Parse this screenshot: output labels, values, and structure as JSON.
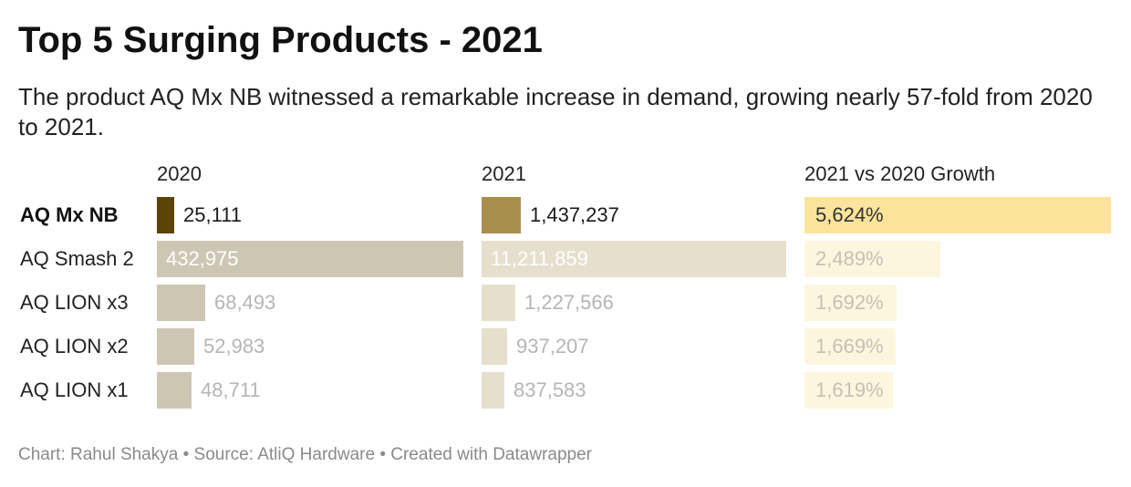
{
  "header": {
    "title": "Top 5 Surging Products - 2021",
    "subtitle": "The product AQ Mx NB witnessed a remarkable increase in demand, growing nearly 57-fold from 2020 to 2021."
  },
  "footer": {
    "text": "Chart: Rahul Shakya • Source: AtliQ Hardware • Created with Datawrapper"
  },
  "chart_data": {
    "type": "bar",
    "orientation": "horizontal",
    "categories": [
      "AQ Mx NB",
      "AQ Smash 2",
      "AQ LION x3",
      "AQ LION x2",
      "AQ LION x1"
    ],
    "highlight_category": "AQ Mx NB",
    "series": [
      {
        "name": "2020",
        "values": [
          25111,
          432975,
          68493,
          52983,
          48711
        ],
        "labels": [
          "25,111",
          "432,975",
          "68,493",
          "52,983",
          "48,711"
        ],
        "highlight_color": "#5c4308",
        "color": "#cdc6b3"
      },
      {
        "name": "2021",
        "values": [
          1437237,
          11211859,
          1227566,
          937207,
          837583
        ],
        "labels": [
          "1,437,237",
          "11,211,859",
          "1,227,566",
          "937,207",
          "837,583"
        ],
        "highlight_color": "#a88f4c",
        "color": "#e6dfcd"
      },
      {
        "name": "2021 vs 2020 Growth",
        "values": [
          5624,
          2489,
          1692,
          1669,
          1619
        ],
        "labels": [
          "5,624%",
          "2,489%",
          "1,692%",
          "1,669%",
          "1,619%"
        ],
        "highlight_color": "#fde49c",
        "color": "#fdf6df"
      }
    ]
  }
}
